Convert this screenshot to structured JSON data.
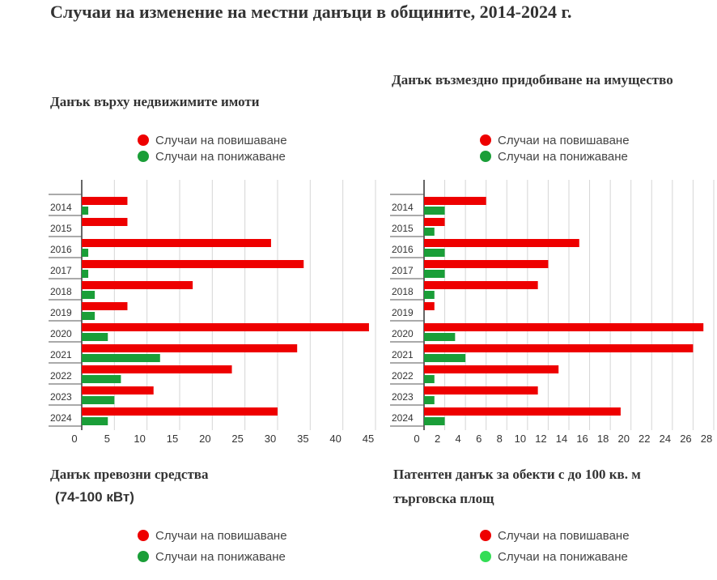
{
  "title": "Случаи на изменение на местни данъци в общините, 2014-2024 г.",
  "colors": {
    "increase": "#ee0000",
    "decrease": "#1a9e38",
    "decrease_light": "#33dd55"
  },
  "legend": {
    "increase_label": "Случаи на повишаване",
    "decrease_label": "Случаи на понижаване"
  },
  "charts": [
    {
      "title": "Данък върху недвижимите имоти"
    },
    {
      "title": "Данък възмездно придобиване на имущество"
    },
    {
      "title_line1": "Данък превозни средства",
      "title_line2": "(74-100 кВт)"
    },
    {
      "title_line1": "Патентен данък за обекти с до 100 кв. м",
      "title_line2": "търговска площ"
    }
  ],
  "chart_data": [
    {
      "type": "bar",
      "orientation": "horizontal",
      "title": "Данък върху недвижимите имоти",
      "categories": [
        "2014",
        "2015",
        "2016",
        "2017",
        "2018",
        "2019",
        "2020",
        "2021",
        "2022",
        "2023",
        "2024"
      ],
      "series": [
        {
          "name": "Случаи на повишаване",
          "values": [
            7,
            7,
            29,
            34,
            17,
            7,
            44,
            33,
            23,
            11,
            30
          ]
        },
        {
          "name": "Случаи на понижаване",
          "values": [
            1,
            0,
            1,
            1,
            2,
            2,
            4,
            12,
            6,
            5,
            4
          ]
        }
      ],
      "xlim": [
        0,
        45
      ],
      "xticks": [
        0,
        5,
        10,
        15,
        20,
        25,
        30,
        35,
        40,
        45
      ],
      "grid": true,
      "legend_position": "top"
    },
    {
      "type": "bar",
      "orientation": "horizontal",
      "title": "Данък възмездно придобиване на имущество",
      "categories": [
        "2014",
        "2015",
        "2016",
        "2017",
        "2018",
        "2019",
        "2020",
        "2021",
        "2022",
        "2023",
        "2024"
      ],
      "series": [
        {
          "name": "Случаи на повишаване",
          "values": [
            6,
            2,
            15,
            12,
            11,
            1,
            27,
            26,
            13,
            11,
            19
          ]
        },
        {
          "name": "Случаи на понижаване",
          "values": [
            2,
            1,
            2,
            2,
            1,
            0,
            3,
            4,
            1,
            1,
            2
          ]
        }
      ],
      "xlim": [
        0,
        28
      ],
      "xticks": [
        0,
        2,
        4,
        6,
        8,
        10,
        12,
        14,
        16,
        18,
        20,
        22,
        24,
        26,
        28
      ],
      "grid": true,
      "legend_position": "top"
    }
  ]
}
